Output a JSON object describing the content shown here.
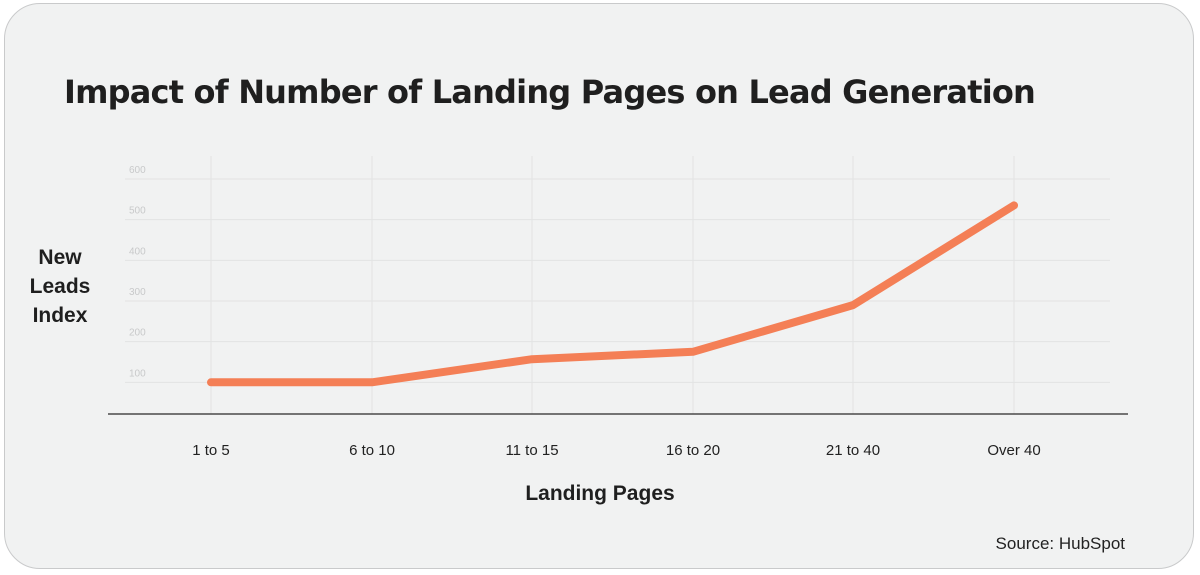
{
  "title": "Impact of Number of Landing Pages on Lead Generation",
  "source": "Source: HubSpot",
  "colors": {
    "line": "#f47f56",
    "background": "#f1f2f2",
    "grid": "#e2e3e3",
    "axis": "#4a4a4a"
  },
  "chart_data": {
    "type": "line",
    "title": "Impact of Number of Landing Pages on Lead Generation",
    "xlabel": "Landing Pages",
    "ylabel_lines": [
      "New",
      "Leads",
      "Index"
    ],
    "categories": [
      "1 to 5",
      "6 to 10",
      "11 to 15",
      "16 to 20",
      "21 to 40",
      "Over 40"
    ],
    "series": [
      {
        "values": [
          100,
          100,
          157,
          175,
          290,
          535
        ]
      }
    ],
    "yticks": [
      100,
      200,
      300,
      400,
      500,
      600
    ],
    "ylim": [
      0,
      600
    ],
    "grid": true,
    "legend": "none"
  }
}
